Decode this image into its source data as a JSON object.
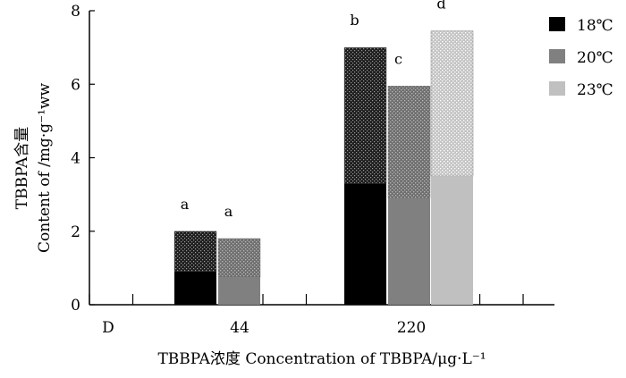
{
  "chart_data": {
    "type": "bar",
    "subtype": "stacked-grouped",
    "categories": [
      "D",
      "44",
      "220"
    ],
    "ylabel_line1": "TBBPA含量",
    "ylabel_line2": "Content of /mg·g⁻¹ww",
    "xlabel": "TBBPA浓度 Concentration of TBBPA/μg·L⁻¹",
    "ylim": [
      0,
      8
    ],
    "yticks": [
      "0",
      "2",
      "4",
      "6",
      "8"
    ],
    "series": [
      {
        "name": "18℃",
        "color": "#000000",
        "lower": [
          null,
          0.9,
          3.3
        ],
        "total": [
          null,
          2.0,
          7.0
        ],
        "significance": [
          null,
          "a",
          "b"
        ]
      },
      {
        "name": "20℃",
        "color": "#808080",
        "lower": [
          null,
          0.75,
          2.9
        ],
        "total": [
          null,
          1.8,
          5.95
        ],
        "significance": [
          null,
          "a",
          "c"
        ]
      },
      {
        "name": "23℃",
        "color": "#c0c0c0",
        "lower": [
          null,
          null,
          3.5
        ],
        "total": [
          null,
          null,
          7.45
        ],
        "significance": [
          null,
          null,
          "d"
        ]
      }
    ],
    "legend_position": "top-right",
    "grid": false
  }
}
